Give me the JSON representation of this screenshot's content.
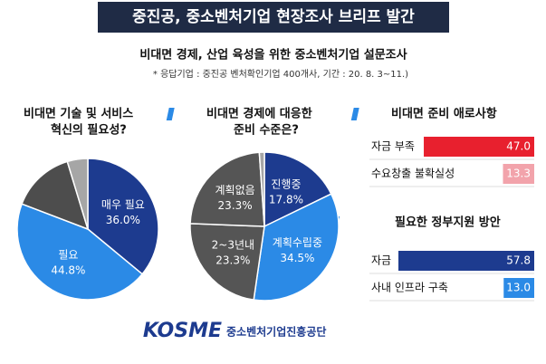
{
  "header": {
    "title": "중진공, 중소벤처기업 현장조사 브리프 발간",
    "subtitle": "비대면 경제, 산업 육성을 위한 중소벤처기업 설문조사",
    "note": "* 응답기업 : 중진공 벤처확인기업 400개사,  기간 : 20. 8. 3~11.)"
  },
  "footer": {
    "logo": "KOSME",
    "org": "중소벤처기업진흥공단"
  },
  "chart_data": [
    {
      "type": "pie",
      "title": [
        "비대면 기술 및 서비스",
        "혁신의 필요성?"
      ],
      "categories": [
        "매우 필요",
        "필요",
        null,
        null
      ],
      "values": [
        36.0,
        44.8,
        14.5,
        4.7
      ],
      "value_labels": [
        "36.0%",
        "44.8%",
        null,
        null
      ],
      "colors": [
        "#1d3b8f",
        "#2b8ae6",
        "#4d4d4d",
        "#a6a6a6"
      ]
    },
    {
      "type": "pie",
      "title": [
        "비대면 경제에 대응한",
        "준비 수준은?"
      ],
      "categories": [
        "진행중",
        "계획수립중",
        "2~3년내",
        "계획없음",
        null
      ],
      "values": [
        17.8,
        34.5,
        23.3,
        23.3,
        1.1
      ],
      "value_labels": [
        "17.8%",
        "34.5%",
        "23.3%",
        "23.3%",
        null
      ],
      "colors": [
        "#1d3b8f",
        "#2b8ae6",
        "#555555",
        "#555555",
        "#a6a6a6"
      ]
    },
    {
      "type": "hbar",
      "title": "비대면 준비 애로사항",
      "categories": [
        "자금 부족",
        "수요창출 불확실성"
      ],
      "values": [
        47.0,
        13.3
      ],
      "value_labels": [
        "47.0",
        "13.3"
      ],
      "colors": [
        "#e8202e",
        "#f2a3ab"
      ]
    },
    {
      "type": "hbar",
      "title": "필요한 정부지원 방안",
      "categories": [
        "자금",
        "사내 인프라 구축"
      ],
      "values": [
        57.8,
        13.0
      ],
      "value_labels": [
        "57.8",
        "13.0"
      ],
      "colors": [
        "#1d3b8f",
        "#2b8ae6"
      ]
    }
  ]
}
